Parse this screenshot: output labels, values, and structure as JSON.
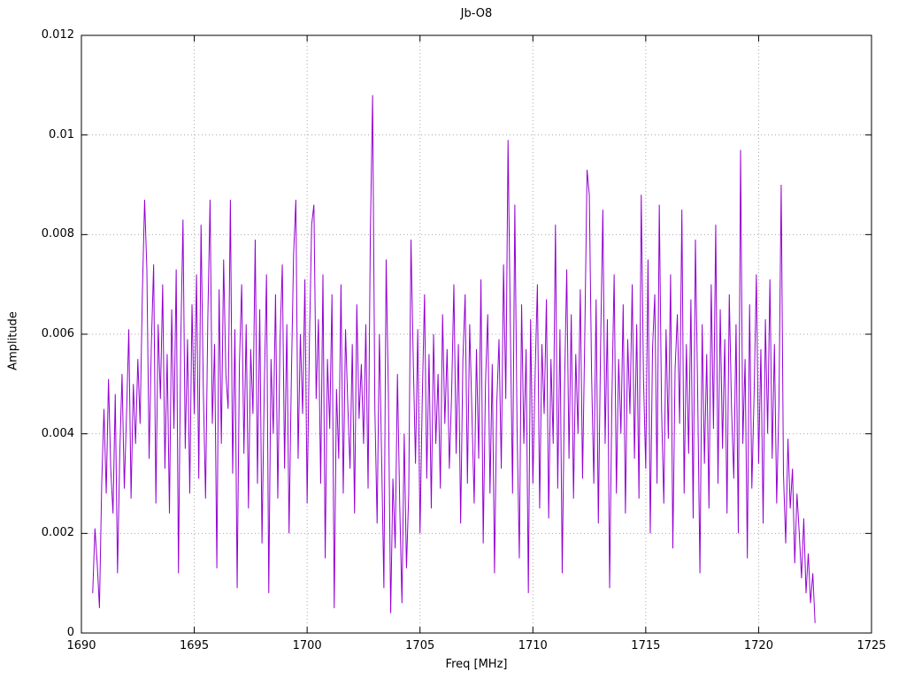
{
  "chart": {
    "title": "Jb-O8",
    "xlabel": "Freq [MHz]",
    "ylabel": "Amplitude"
  },
  "chart_data": {
    "type": "line",
    "title": "Jb-O8",
    "xlabel": "Freq [MHz]",
    "ylabel": "Amplitude",
    "xlim": [
      1690,
      1725
    ],
    "ylim": [
      0,
      0.012
    ],
    "xticks": [
      1690,
      1695,
      1700,
      1705,
      1710,
      1715,
      1720,
      1725
    ],
    "xtick_labels": [
      "1690",
      "1695",
      "1700",
      "1705",
      "1710",
      "1715",
      "1720",
      "1725"
    ],
    "yticks": [
      0,
      0.002,
      0.004,
      0.006,
      0.008,
      0.01,
      0.012
    ],
    "ytick_labels": [
      "0",
      "0.002",
      "0.004",
      "0.006",
      "0.008",
      "0.01",
      "0.012"
    ],
    "grid": true,
    "grid_style": "dotted",
    "legend": "none",
    "line_color": "#9400d3",
    "series": [
      {
        "name": "Jb-O8",
        "x_start": 1690.5,
        "x_step": 0.1,
        "value_scale": 0.0001,
        "values": [
          8,
          21,
          14,
          5,
          30,
          45,
          28,
          51,
          33,
          24,
          48,
          12,
          36,
          52,
          29,
          44,
          61,
          27,
          50,
          38,
          55,
          42,
          68,
          87,
          73,
          35,
          58,
          74,
          26,
          62,
          47,
          70,
          33,
          56,
          24,
          65,
          41,
          73,
          12,
          58,
          83,
          37,
          59,
          28,
          66,
          44,
          72,
          31,
          82,
          49,
          27,
          63,
          87,
          42,
          58,
          13,
          69,
          38,
          75,
          52,
          45,
          87,
          32,
          61,
          9,
          54,
          70,
          36,
          62,
          25,
          57,
          44,
          79,
          30,
          65,
          18,
          49,
          72,
          8,
          55,
          40,
          68,
          27,
          59,
          74,
          33,
          62,
          20,
          51,
          76,
          87,
          35,
          60,
          44,
          71,
          26,
          58,
          82,
          86,
          47,
          63,
          30,
          72,
          15,
          55,
          41,
          68,
          5,
          49,
          35,
          70,
          28,
          61,
          46,
          33,
          58,
          24,
          66,
          43,
          54,
          38,
          62,
          29,
          80,
          108,
          45,
          22,
          60,
          35,
          9,
          75,
          48,
          4,
          31,
          17,
          52,
          26,
          6,
          40,
          13,
          28,
          79,
          55,
          34,
          61,
          20,
          47,
          68,
          31,
          56,
          25,
          60,
          38,
          52,
          29,
          64,
          42,
          57,
          33,
          48,
          70,
          36,
          58,
          22,
          55,
          68,
          30,
          62,
          44,
          26,
          57,
          35,
          71,
          18,
          50,
          64,
          28,
          54,
          12,
          46,
          59,
          33,
          74,
          47,
          99,
          62,
          28,
          86,
          41,
          15,
          66,
          38,
          57,
          8,
          63,
          30,
          52,
          70,
          25,
          58,
          44,
          67,
          23,
          55,
          38,
          82,
          29,
          61,
          12,
          49,
          73,
          35,
          64,
          27,
          56,
          40,
          69,
          31,
          60,
          93,
          88,
          52,
          30,
          67,
          22,
          58,
          85,
          38,
          63,
          9,
          47,
          72,
          28,
          55,
          40,
          66,
          24,
          59,
          44,
          70,
          35,
          62,
          27,
          88,
          51,
          33,
          75,
          20,
          57,
          68,
          30,
          86,
          45,
          26,
          61,
          39,
          72,
          17,
          53,
          64,
          42,
          85,
          28,
          58,
          36,
          67,
          23,
          79,
          48,
          12,
          62,
          34,
          56,
          25,
          70,
          41,
          82,
          30,
          65,
          37,
          59,
          24,
          68,
          45,
          31,
          62,
          20,
          97,
          38,
          55,
          15,
          66,
          29,
          48,
          72,
          34,
          57,
          22,
          63,
          40,
          71,
          35,
          58,
          26,
          46,
          90,
          32,
          18,
          39,
          25,
          33,
          14,
          28,
          20,
          11,
          23,
          8,
          16,
          6,
          12,
          2
        ]
      }
    ]
  }
}
